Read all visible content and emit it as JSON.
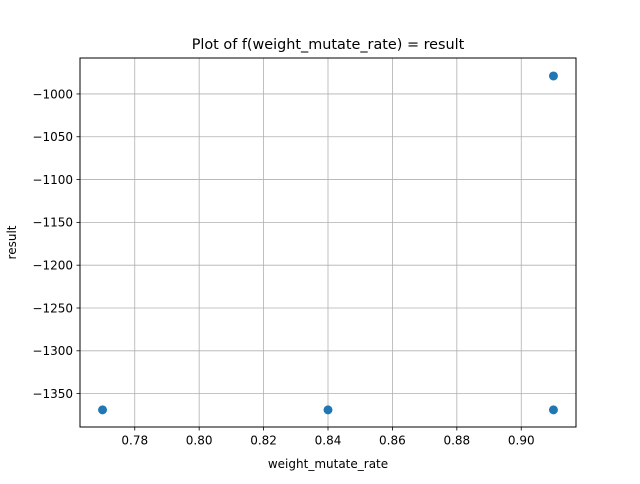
{
  "chart_data": {
    "type": "scatter",
    "title": "Plot of f(weight_mutate_rate) = result",
    "xlabel": "weight_mutate_rate",
    "ylabel": "result",
    "xlim": [
      0.763,
      0.917
    ],
    "ylim": [
      -1389,
      -958
    ],
    "xticks": [
      0.78,
      0.8,
      0.82,
      0.84,
      0.86,
      0.88,
      0.9
    ],
    "xtick_labels": [
      "0.78",
      "0.80",
      "0.82",
      "0.84",
      "0.86",
      "0.88",
      "0.90"
    ],
    "yticks": [
      -1000,
      -1050,
      -1100,
      -1150,
      -1200,
      -1250,
      -1300,
      -1350
    ],
    "ytick_labels": [
      "−1000",
      "−1050",
      "−1100",
      "−1150",
      "−1200",
      "−1250",
      "−1300",
      "−1350"
    ],
    "grid": true,
    "marker_color": "#1f77b4",
    "points": [
      {
        "x": 0.77,
        "y": -1369
      },
      {
        "x": 0.84,
        "y": -1369
      },
      {
        "x": 0.91,
        "y": -1369
      },
      {
        "x": 0.91,
        "y": -979
      }
    ]
  }
}
